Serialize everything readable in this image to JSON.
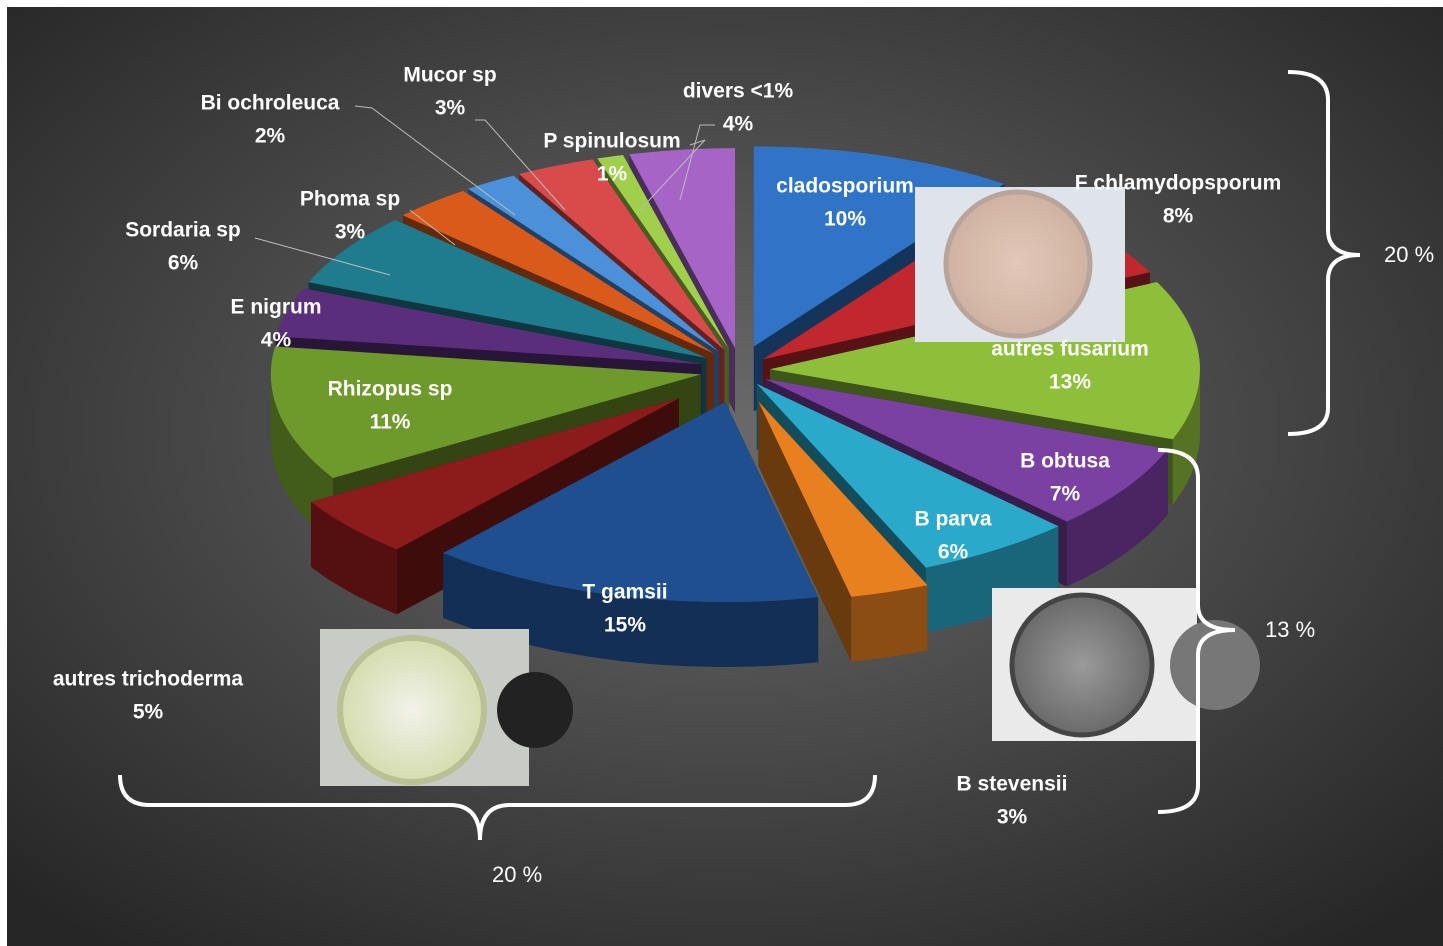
{
  "chart_data": {
    "type": "pie",
    "categories": [
      "cladosporium",
      "F chlamydopsporum",
      "autres fusarium",
      "B obtusa",
      "B parva",
      "B stevensii",
      "T gamsii",
      "autres trichoderma",
      "Rhizopus sp",
      "E nigrum",
      "Sordaria sp",
      "Phoma sp",
      "Bi  ochroleuca",
      "Mucor sp",
      "P spinulosum",
      "divers <1%"
    ],
    "values": [
      10,
      8,
      13,
      7,
      6,
      3,
      15,
      5,
      11,
      4,
      6,
      3,
      2,
      3,
      1,
      4
    ],
    "value_labels": [
      "10%",
      "8%",
      "13%",
      "7%",
      "6%",
      "3%",
      "15%",
      "5%",
      "11%",
      "4%",
      "6%",
      "3%",
      "2%",
      "3%",
      "1%",
      "4%"
    ],
    "colors": [
      "#2f74c6",
      "#c0282d",
      "#8dbf3b",
      "#7a40a2",
      "#2aa9cb",
      "#e8801f",
      "#1f4f8e",
      "#8c1b1b",
      "#6e9a2b",
      "#5b2e7c",
      "#1f7b8e",
      "#d95a1a",
      "#4b91da",
      "#d94b4b",
      "#9fcf4b",
      "#a564c6"
    ],
    "annotations": [
      "20 %",
      "13 %",
      "20 %"
    ]
  }
}
